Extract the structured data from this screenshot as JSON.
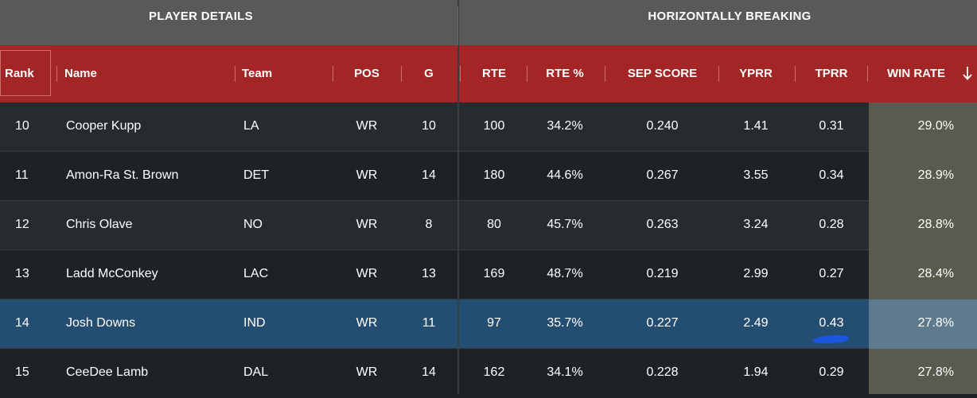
{
  "group_headers": {
    "player_details": "PLAYER DETAILS",
    "horizontally_breaking": "HORIZONTALLY BREAKING"
  },
  "columns": {
    "rank": "Rank",
    "name": "Name",
    "team": "Team",
    "pos": "POS",
    "g": "G",
    "rte": "RTE",
    "rte_pct": "RTE %",
    "sep_score": "SEP SCORE",
    "yprr": "YPRR",
    "tprr": "TPRR",
    "win_rate": "WIN RATE"
  },
  "sort": {
    "column": "win_rate",
    "direction": "descending",
    "icon": "arrow-down-icon"
  },
  "rows": [
    {
      "rank": "10",
      "name": "Cooper Kupp",
      "team": "LA",
      "pos": "WR",
      "g": "10",
      "rte": "100",
      "rte_pct": "34.2%",
      "sep_score": "0.240",
      "yprr": "1.41",
      "tprr": "0.31",
      "win_rate": "29.0%"
    },
    {
      "rank": "11",
      "name": "Amon-Ra St. Brown",
      "team": "DET",
      "pos": "WR",
      "g": "14",
      "rte": "180",
      "rte_pct": "44.6%",
      "sep_score": "0.267",
      "yprr": "3.55",
      "tprr": "0.34",
      "win_rate": "28.9%"
    },
    {
      "rank": "12",
      "name": "Chris Olave",
      "team": "NO",
      "pos": "WR",
      "g": "8",
      "rte": "80",
      "rte_pct": "45.7%",
      "sep_score": "0.263",
      "yprr": "3.24",
      "tprr": "0.28",
      "win_rate": "28.8%"
    },
    {
      "rank": "13",
      "name": "Ladd McConkey",
      "team": "LAC",
      "pos": "WR",
      "g": "13",
      "rte": "169",
      "rte_pct": "48.7%",
      "sep_score": "0.219",
      "yprr": "2.99",
      "tprr": "0.27",
      "win_rate": "28.4%"
    },
    {
      "rank": "14",
      "name": "Josh Downs",
      "team": "IND",
      "pos": "WR",
      "g": "11",
      "rte": "97",
      "rte_pct": "35.7%",
      "sep_score": "0.227",
      "yprr": "2.49",
      "tprr": "0.43",
      "win_rate": "27.8%"
    },
    {
      "rank": "15",
      "name": "CeeDee Lamb",
      "team": "DAL",
      "pos": "WR",
      "g": "14",
      "rte": "162",
      "rte_pct": "34.1%",
      "sep_score": "0.228",
      "yprr": "1.94",
      "tprr": "0.29",
      "win_rate": "27.8%"
    }
  ],
  "selected_row_rank": "14",
  "colors": {
    "group_header_bg": "#595959",
    "column_header_bg": "#a32525",
    "row_bg_dark": "#1e2226",
    "row_bg_light": "#272b2f",
    "selected_row_bg": "#244d72",
    "win_rate_column_bg": "#5a5a4e",
    "annotation_mark": "#1a55e0"
  }
}
